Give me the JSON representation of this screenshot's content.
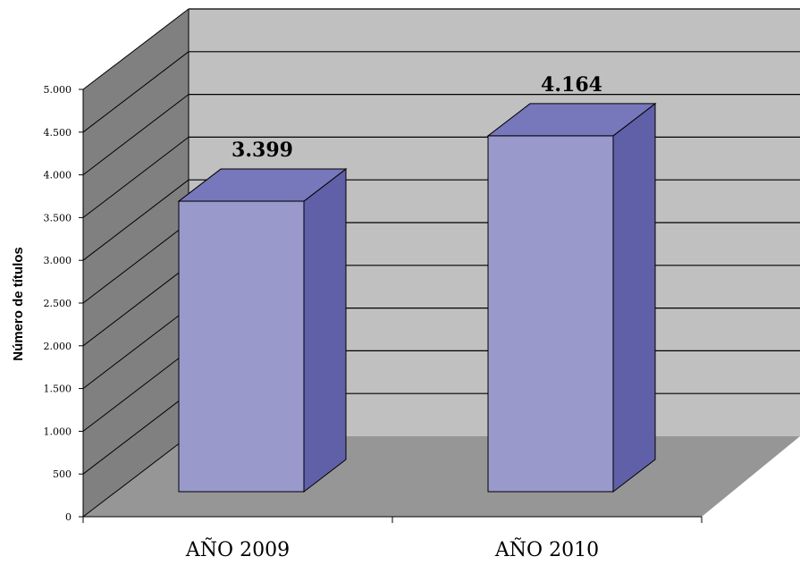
{
  "chart_data": {
    "type": "bar",
    "style": "3d-column",
    "title": "",
    "xlabel": "",
    "ylabel": "Número de títulos",
    "categories": [
      "AÑO 2009",
      "AÑO 2010"
    ],
    "values": [
      3399,
      4164
    ],
    "data_labels": [
      "3.399",
      "4.164"
    ],
    "ylim": [
      0,
      5000
    ],
    "yticks": [
      0,
      500,
      1000,
      1500,
      2000,
      2500,
      3000,
      3500,
      4000,
      4500,
      5000
    ],
    "ytick_labels": [
      "0",
      "500",
      "1.000",
      "1.500",
      "2.000",
      "2.500",
      "3.000",
      "3.500",
      "4.000",
      "4.500",
      "5.000"
    ],
    "grid": true,
    "legend": "none"
  },
  "colors": {
    "wall_back": "#c0c0c0",
    "wall_side": "#808080",
    "floor": "#969696",
    "bar_front": "#9999cc",
    "bar_top": "#7777bb",
    "bar_side": "#6060a8"
  }
}
